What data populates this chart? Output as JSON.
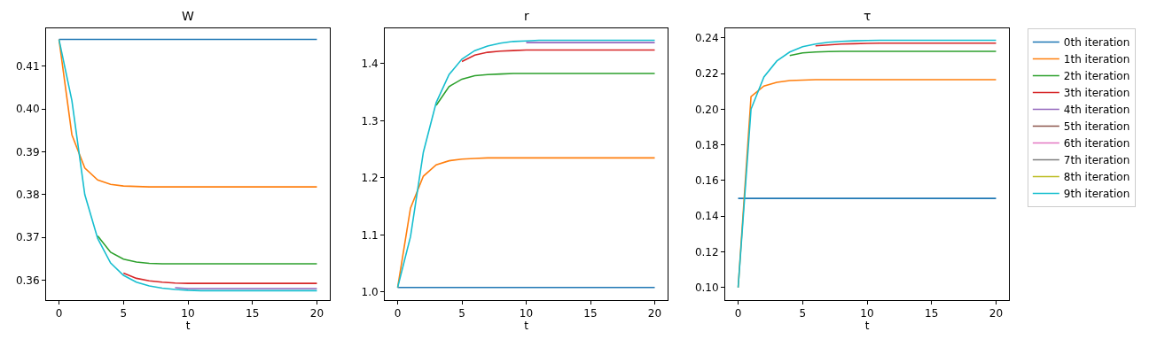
{
  "chart_data": [
    {
      "type": "line",
      "title": "W",
      "xlabel": "t",
      "x": [
        0,
        1,
        2,
        3,
        4,
        5,
        6,
        7,
        8,
        9,
        10,
        11,
        12,
        13,
        14,
        15,
        16,
        17,
        18,
        19,
        20
      ],
      "xlim": [
        -1,
        21
      ],
      "xticks": [
        0,
        5,
        10,
        15,
        20
      ],
      "ylim": [
        0.3553,
        0.4189
      ],
      "yticks": [
        0.36,
        0.37,
        0.38,
        0.39,
        {
          "value": 0.4,
          "label": "0.40"
        },
        0.41
      ],
      "series": [
        {
          "color": "#1f77b4",
          "values": [
            0.4163,
            0.4163,
            0.4163,
            0.4163,
            0.4163,
            0.4163,
            0.4163,
            0.4163,
            0.4163,
            0.4163,
            0.4163,
            0.4163,
            0.4163,
            0.4163,
            0.4163,
            0.4163,
            0.4163,
            0.4163,
            0.4163,
            0.4163,
            0.4163
          ]
        },
        {
          "color": "#ff7f0e",
          "values": [
            0.4163,
            0.394,
            0.3862,
            0.3834,
            0.3824,
            0.382,
            0.3819,
            0.3818,
            0.3818,
            0.3818,
            0.3818,
            0.3818,
            0.3818,
            0.3818,
            0.3818,
            0.3818,
            0.3818,
            0.3818,
            0.3818,
            0.3818,
            0.3818
          ]
        },
        {
          "color": "#2ca02c",
          "values": [
            null,
            null,
            null,
            0.3703,
            0.3665,
            0.3649,
            0.3642,
            0.3639,
            0.3638,
            0.3638,
            0.3638,
            0.3638,
            0.3638,
            0.3638,
            0.3638,
            0.3638,
            0.3638,
            0.3638,
            0.3638,
            0.3638,
            0.3638
          ]
        },
        {
          "color": "#d62728",
          "values": [
            null,
            null,
            null,
            null,
            null,
            0.3616,
            0.3604,
            0.3598,
            0.3595,
            0.3593,
            0.3592,
            0.3592,
            0.3592,
            0.3592,
            0.3592,
            0.3592,
            0.3592,
            0.3592,
            0.3592,
            0.3592,
            0.3592
          ]
        },
        {
          "color": "#9467bd",
          "values": [
            null,
            null,
            null,
            null,
            null,
            null,
            null,
            null,
            null,
            0.3582,
            0.358,
            0.358,
            0.358,
            0.358,
            0.358,
            0.358,
            0.358,
            0.358,
            0.358,
            0.358,
            0.358
          ]
        },
        {
          "color": "#17becf",
          "values": [
            0.4163,
            0.402,
            0.38,
            0.3697,
            0.364,
            0.3611,
            0.3595,
            0.3586,
            0.3581,
            0.3578,
            0.3576,
            0.3575,
            0.3575,
            0.3575,
            0.3575,
            0.3575,
            0.3575,
            0.3575,
            0.3575,
            0.3575,
            0.3575
          ]
        }
      ]
    },
    {
      "type": "line",
      "title": "r",
      "xlabel": "t",
      "x": [
        0,
        1,
        2,
        3,
        4,
        5,
        6,
        7,
        8,
        9,
        10,
        11,
        12,
        13,
        14,
        15,
        16,
        17,
        18,
        19,
        20
      ],
      "xlim": [
        -1,
        21
      ],
      "xticks": [
        0,
        5,
        10,
        15,
        20
      ],
      "ylim": [
        0.986,
        1.462
      ],
      "yticks": [
        {
          "value": 1,
          "label": "1.0"
        },
        1.1,
        1.2,
        1.3,
        1.4
      ],
      "series": [
        {
          "color": "#1f77b4",
          "values": [
            1.008,
            1.008,
            1.008,
            1.008,
            1.008,
            1.008,
            1.008,
            1.008,
            1.008,
            1.008,
            1.008,
            1.008,
            1.008,
            1.008,
            1.008,
            1.008,
            1.008,
            1.008,
            1.008,
            1.008,
            1.008
          ]
        },
        {
          "color": "#ff7f0e",
          "values": [
            1.008,
            1.147,
            1.203,
            1.223,
            1.23,
            1.233,
            1.234,
            1.235,
            1.235,
            1.235,
            1.235,
            1.235,
            1.235,
            1.235,
            1.235,
            1.235,
            1.235,
            1.235,
            1.235,
            1.235,
            1.235
          ]
        },
        {
          "color": "#2ca02c",
          "values": [
            null,
            null,
            null,
            1.327,
            1.36,
            1.373,
            1.379,
            1.381,
            1.382,
            1.383,
            1.383,
            1.383,
            1.383,
            1.383,
            1.383,
            1.383,
            1.383,
            1.383,
            1.383,
            1.383,
            1.383
          ]
        },
        {
          "color": "#d62728",
          "values": [
            null,
            null,
            null,
            null,
            null,
            1.404,
            1.415,
            1.42,
            1.422,
            1.423,
            1.424,
            1.424,
            1.424,
            1.424,
            1.424,
            1.424,
            1.424,
            1.424,
            1.424,
            1.424,
            1.424
          ]
        },
        {
          "color": "#9467bd",
          "values": [
            null,
            null,
            null,
            null,
            null,
            null,
            null,
            null,
            null,
            null,
            1.437,
            1.437,
            1.437,
            1.437,
            1.437,
            1.437,
            1.437,
            1.437,
            1.437,
            1.437,
            1.437
          ]
        },
        {
          "color": "#17becf",
          "values": [
            1.008,
            1.097,
            1.245,
            1.332,
            1.381,
            1.408,
            1.423,
            1.431,
            1.436,
            1.439,
            1.44,
            1.441,
            1.441,
            1.441,
            1.441,
            1.441,
            1.441,
            1.441,
            1.441,
            1.441,
            1.441
          ]
        }
      ]
    },
    {
      "type": "line",
      "title": "τ",
      "xlabel": "t",
      "x": [
        0,
        1,
        2,
        3,
        4,
        5,
        6,
        7,
        8,
        9,
        10,
        11,
        12,
        13,
        14,
        15,
        16,
        17,
        18,
        19,
        20
      ],
      "xlim": [
        -1,
        21
      ],
      "xticks": [
        0,
        5,
        10,
        15,
        20
      ],
      "ylim": [
        0.093,
        0.2453
      ],
      "yticks": [
        {
          "value": 0.1,
          "label": "0.10"
        },
        0.12,
        0.14,
        0.16,
        0.18,
        {
          "value": 0.2,
          "label": "0.20"
        },
        0.22,
        0.24
      ],
      "legend": "right",
      "series": [
        {
          "name": "0th iteration",
          "color": "#1f77b4",
          "values": [
            0.15,
            0.15,
            0.15,
            0.15,
            0.15,
            0.15,
            0.15,
            0.15,
            0.15,
            0.15,
            0.15,
            0.15,
            0.15,
            0.15,
            0.15,
            0.15,
            0.15,
            0.15,
            0.15,
            0.15,
            0.15
          ]
        },
        {
          "name": "1th iteration",
          "color": "#ff7f0e",
          "values": [
            0.1,
            0.207,
            0.213,
            0.215,
            0.216,
            0.2163,
            0.2165,
            0.2165,
            0.2165,
            0.2165,
            0.2165,
            0.2165,
            0.2165,
            0.2165,
            0.2165,
            0.2165,
            0.2165,
            0.2165,
            0.2165,
            0.2165,
            0.2165
          ]
        },
        {
          "name": "2th iteration",
          "color": "#2ca02c",
          "values": [
            null,
            null,
            null,
            null,
            0.23,
            0.2315,
            0.232,
            0.2323,
            0.2324,
            0.2324,
            0.2324,
            0.2324,
            0.2324,
            0.2324,
            0.2324,
            0.2324,
            0.2324,
            0.2324,
            0.2324,
            0.2324,
            0.2324
          ]
        },
        {
          "name": "3th iteration",
          "color": "#d62728",
          "values": [
            null,
            null,
            null,
            null,
            null,
            null,
            0.2355,
            0.236,
            0.2365,
            0.2367,
            0.2369,
            0.237,
            0.237,
            0.237,
            0.237,
            0.237,
            0.237,
            0.237,
            0.237,
            0.237,
            0.237
          ]
        },
        {
          "name": "4th iteration",
          "color": "#9467bd",
          "values": [
            null,
            null,
            null,
            null,
            null,
            null,
            null,
            null,
            null,
            null,
            null,
            null,
            null,
            null,
            null,
            null,
            null,
            null,
            null,
            null,
            null
          ]
        },
        {
          "name": "5th iteration",
          "color": "#8c564b",
          "values": [
            null,
            null,
            null,
            null,
            null,
            null,
            null,
            null,
            null,
            null,
            null,
            null,
            null,
            null,
            null,
            null,
            null,
            null,
            null,
            null,
            null
          ]
        },
        {
          "name": "6th iteration",
          "color": "#e377c2",
          "values": [
            null,
            null,
            null,
            null,
            null,
            null,
            null,
            null,
            null,
            null,
            null,
            null,
            null,
            null,
            null,
            null,
            null,
            null,
            null,
            null,
            null
          ]
        },
        {
          "name": "7th iteration",
          "color": "#7f7f7f",
          "values": [
            null,
            null,
            null,
            null,
            null,
            null,
            null,
            null,
            null,
            null,
            null,
            null,
            null,
            null,
            null,
            null,
            null,
            null,
            null,
            null,
            null
          ]
        },
        {
          "name": "8th iteration",
          "color": "#bcbd22",
          "values": [
            null,
            null,
            null,
            null,
            null,
            null,
            null,
            null,
            null,
            null,
            null,
            null,
            null,
            null,
            null,
            null,
            null,
            null,
            null,
            null,
            null
          ]
        },
        {
          "name": "9th iteration",
          "color": "#17becf",
          "values": [
            0.1,
            0.2,
            0.218,
            0.227,
            0.232,
            0.235,
            0.2365,
            0.2375,
            0.238,
            0.2383,
            0.2385,
            0.2386,
            0.2386,
            0.2386,
            0.2386,
            0.2386,
            0.2386,
            0.2386,
            0.2386,
            0.2386,
            0.2386
          ]
        }
      ]
    }
  ]
}
